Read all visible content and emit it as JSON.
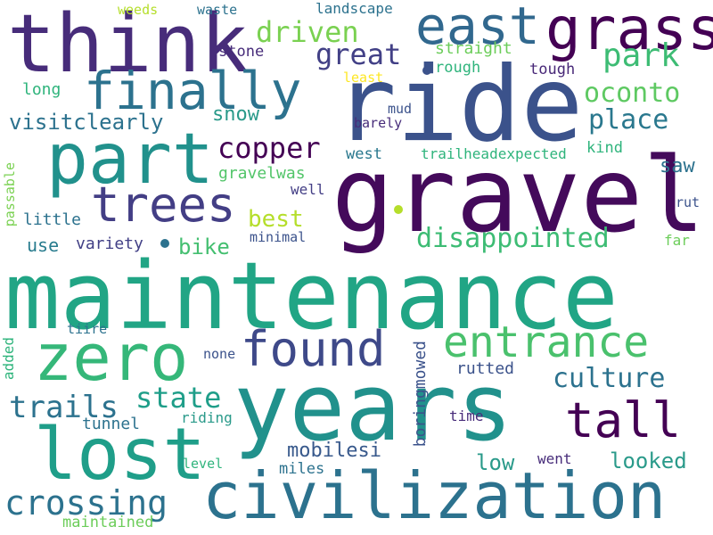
{
  "words": [
    {
      "text": "maintenance",
      "color": "#21a585"
    },
    {
      "text": "gravel",
      "color": "#440a5b"
    },
    {
      "text": "ride",
      "color": "#3b528b"
    },
    {
      "text": "years",
      "color": "#21918c"
    },
    {
      "text": "civilization",
      "color": "#2c728e"
    },
    {
      "text": "think",
      "color": "#472c7a"
    },
    {
      "text": "part",
      "color": "#21918c"
    },
    {
      "text": "lost",
      "color": "#1f9e89"
    },
    {
      "text": "zero",
      "color": "#35b779"
    },
    {
      "text": "grass",
      "color": "#440154"
    },
    {
      "text": "east",
      "color": "#31688e"
    },
    {
      "text": "finally",
      "color": "#2c728e"
    },
    {
      "text": "trees",
      "color": "#433e85"
    },
    {
      "text": "found",
      "color": "#3e4989"
    },
    {
      "text": "entrance",
      "color": "#4ac16d"
    },
    {
      "text": "tall",
      "color": "#440154"
    },
    {
      "text": "crossing",
      "color": "#2c728e"
    },
    {
      "text": "disappointed",
      "color": "#3dbc74"
    },
    {
      "text": "copper",
      "color": "#440154"
    },
    {
      "text": "great",
      "color": "#424086"
    },
    {
      "text": "driven",
      "color": "#7ad151"
    },
    {
      "text": "park",
      "color": "#3dbc74"
    },
    {
      "text": "oconto",
      "color": "#5ec962"
    },
    {
      "text": "place",
      "color": "#2a788e"
    },
    {
      "text": "trails",
      "color": "#2c728e"
    },
    {
      "text": "state",
      "color": "#1f9e89"
    },
    {
      "text": "culture",
      "color": "#2c728e"
    },
    {
      "text": "looked",
      "color": "#2a9a8a"
    },
    {
      "text": "low",
      "color": "#2a9a8a"
    },
    {
      "text": "mobilesi",
      "color": "#38598c"
    },
    {
      "text": "visitclearly",
      "color": "#2c728e"
    },
    {
      "text": "snow",
      "color": "#2a9a8a"
    },
    {
      "text": "best",
      "color": "#b5de2b"
    },
    {
      "text": "bike",
      "color": "#44bf70"
    },
    {
      "text": "saw",
      "color": "#2c728e"
    },
    {
      "text": "gravelwas",
      "color": "#52c569"
    },
    {
      "text": "long",
      "color": "#2fb47c"
    },
    {
      "text": "use",
      "color": "#287c8e"
    },
    {
      "text": "variety",
      "color": "#424086"
    },
    {
      "text": "little",
      "color": "#2c728e"
    },
    {
      "text": "straight",
      "color": "#6ccd5a"
    },
    {
      "text": "rough",
      "color": "#2fb47c"
    },
    {
      "text": "tough",
      "color": "#482878"
    },
    {
      "text": "stone",
      "color": "#472c7a"
    },
    {
      "text": "weeds",
      "color": "#b5de2b"
    },
    {
      "text": "waste",
      "color": "#2c728e"
    },
    {
      "text": "landscape",
      "color": "#2c728e"
    },
    {
      "text": "least",
      "color": "#fde725"
    },
    {
      "text": "mud",
      "color": "#3b528b"
    },
    {
      "text": "barely",
      "color": "#472c7a"
    },
    {
      "text": "west",
      "color": "#2a788e"
    },
    {
      "text": "trailheadexpected",
      "color": "#2fb47c"
    },
    {
      "text": "kind",
      "color": "#2fb47c"
    },
    {
      "text": "well",
      "color": "#433e85"
    },
    {
      "text": "rut",
      "color": "#3b528b"
    },
    {
      "text": "minimal",
      "color": "#3b528b"
    },
    {
      "text": "far",
      "color": "#6ccd5a"
    },
    {
      "text": "tiire",
      "color": "#2c728e"
    },
    {
      "text": "none",
      "color": "#3b528b"
    },
    {
      "text": "riding",
      "color": "#2a9a8a"
    },
    {
      "text": "tunnel",
      "color": "#2c728e"
    },
    {
      "text": "rutted",
      "color": "#3b528b"
    },
    {
      "text": "time",
      "color": "#472c7a"
    },
    {
      "text": "went",
      "color": "#472c7a"
    },
    {
      "text": "miles",
      "color": "#2c728e"
    },
    {
      "text": "level",
      "color": "#2fb47c"
    },
    {
      "text": "maintained",
      "color": "#6ccd5a"
    },
    {
      "text": "passable",
      "color": "#7ad151"
    },
    {
      "text": "added",
      "color": "#2fb47c"
    },
    {
      "text": "boringmowed",
      "color": "#3b528b"
    }
  ],
  "dots": [
    {
      "color": "#3b528b"
    },
    {
      "color": "#2c728e"
    },
    {
      "color": "#b5de2b"
    }
  ]
}
